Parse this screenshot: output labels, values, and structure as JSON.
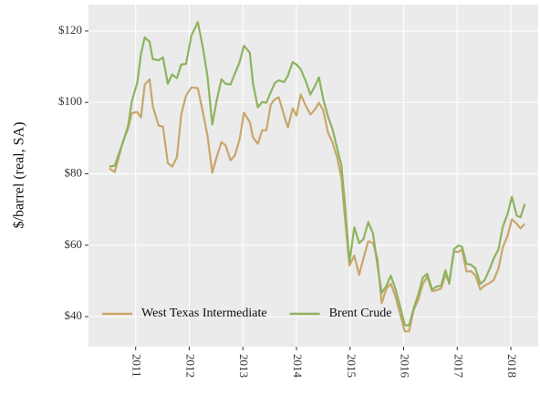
{
  "chart_data": {
    "type": "line",
    "y_label": "$/barrel (real, SA)",
    "x": [
      2010.51,
      2010.61,
      2010.76,
      2010.86,
      2010.93,
      2011.03,
      2011.1,
      2011.17,
      2011.26,
      2011.32,
      2011.43,
      2011.51,
      2011.6,
      2011.68,
      2011.77,
      2011.85,
      2011.94,
      2012.04,
      2012.16,
      2012.26,
      2012.34,
      2012.43,
      2012.51,
      2012.6,
      2012.68,
      2012.77,
      2012.85,
      2012.94,
      2013.02,
      2013.13,
      2013.19,
      2013.28,
      2013.36,
      2013.44,
      2013.52,
      2013.6,
      2013.67,
      2013.77,
      2013.84,
      2013.93,
      2014,
      2014.08,
      2014.18,
      2014.26,
      2014.35,
      2014.42,
      2014.5,
      2014.59,
      2014.67,
      2014.76,
      2014.84,
      2014.91,
      2014.99,
      2015.08,
      2015.17,
      2015.25,
      2015.34,
      2015.43,
      2015.51,
      2015.59,
      2015.68,
      2015.76,
      2015.85,
      2015.93,
      2016.02,
      2016.1,
      2016.19,
      2016.27,
      2016.36,
      2016.44,
      2016.53,
      2016.61,
      2016.7,
      2016.78,
      2016.85,
      2016.94,
      2017.02,
      2017.09,
      2017.17,
      2017.26,
      2017.34,
      2017.43,
      2017.51,
      2017.6,
      2017.68,
      2017.77,
      2017.85,
      2017.94,
      2018.02,
      2018.11,
      2018.18,
      2018.26
    ],
    "series": [
      {
        "name": "West Texas Intermediate",
        "color": "#c9a66b",
        "values": [
          81.5,
          80.5,
          88.9,
          92.7,
          97,
          97.3,
          95.8,
          105,
          106.5,
          98.9,
          93.5,
          93.2,
          83,
          82,
          84.6,
          96.6,
          101.9,
          104.2,
          104,
          96.8,
          90.7,
          80.3,
          84.6,
          88.9,
          87.9,
          83.8,
          85.1,
          89.7,
          97.1,
          94.5,
          90.2,
          88.4,
          92.2,
          92.2,
          99.4,
          100.9,
          101.4,
          96.3,
          93,
          98.3,
          96.3,
          102.2,
          98.9,
          96.6,
          98.1,
          99.9,
          97.8,
          91.5,
          88.9,
          84.6,
          78.7,
          66.8,
          54.3,
          57.1,
          51.7,
          56.3,
          61.1,
          60.6,
          56.3,
          43.8,
          47.9,
          49.2,
          45.6,
          41,
          35.9,
          35.9,
          42,
          44.6,
          49.2,
          51.2,
          47.1,
          47.4,
          47.9,
          51.7,
          49.7,
          58.3,
          58.1,
          58.9,
          52.7,
          52.7,
          51.5,
          47.6,
          48.7,
          49.4,
          50.2,
          53.5,
          59.4,
          62.7,
          67.3,
          66,
          64.7,
          66
        ]
      },
      {
        "name": "Brent Crude",
        "color": "#8db35f",
        "values": [
          82,
          82.3,
          88.7,
          93.5,
          100.4,
          105.5,
          113.6,
          118.2,
          117,
          112.1,
          111.8,
          112.6,
          105.2,
          107.8,
          106.8,
          110.6,
          110.8,
          118.7,
          122.5,
          114.9,
          107.3,
          93.8,
          100.4,
          106.5,
          105.2,
          105,
          108,
          111.3,
          115.9,
          113.9,
          105.2,
          98.6,
          100.1,
          99.9,
          102.9,
          105.5,
          106.2,
          105.7,
          107.5,
          111.3,
          110.6,
          109.3,
          105.7,
          102.2,
          104.7,
          107,
          100.9,
          96,
          92.7,
          87.1,
          82.3,
          70.3,
          55.3,
          65,
          60.6,
          61.7,
          66.5,
          63.2,
          54.5,
          46.6,
          48.7,
          51.5,
          47.6,
          43.1,
          37.7,
          37.5,
          42.5,
          46.1,
          51,
          52,
          47.6,
          48.4,
          48.7,
          53,
          49.2,
          58.9,
          59.9,
          59.6,
          54.8,
          54.5,
          53.5,
          49.2,
          50.2,
          53.2,
          56.3,
          58.9,
          65.2,
          68.8,
          73.6,
          68.3,
          67.8,
          71.6
        ]
      }
    ],
    "xlim": [
      2010.12,
      2018.51
    ],
    "xticks": [
      2011,
      2012,
      2013,
      2014,
      2015,
      2016,
      2017,
      2018
    ],
    "ylim": [
      31.6,
      127.4
    ],
    "yticks": [
      {
        "value": 40,
        "label": "$40"
      },
      {
        "value": 60,
        "label": "$60"
      },
      {
        "value": 80,
        "label": "$80"
      },
      {
        "value": 100,
        "label": "$100"
      },
      {
        "value": 120,
        "label": "$120"
      }
    ],
    "grid": true,
    "legend": "bottom-left"
  }
}
